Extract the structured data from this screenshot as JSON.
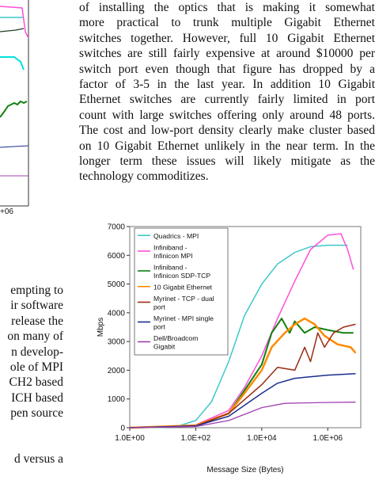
{
  "paragraph_right": [
    "of installing the optics that is making it somewhat",
    "more practical to trunk multiple Gigabit Ethernet",
    "switches together. However, full 10 Gigabit Ethernet",
    "switches are still fairly expensive at around $10000 per",
    "switch port even though that figure has dropped by a",
    "factor of 3-5 in the last year. In addition 10 Gigabit",
    "Ethernet switches are currently fairly limited in port",
    "count with large switches offering only around 48 ports.",
    "The cost and low-port density clearly make cluster based",
    "on 10 Gigabit Ethernet unlikely in the near term. In the",
    "longer term these issues will likely mitigate as the",
    "technology commoditizes."
  ],
  "left_fragment": {
    "tick_label": "+06",
    "lines": [
      "empting to",
      "ir software",
      "release the",
      "on many of",
      "n develop-",
      "ole of MPI",
      "CH2 based",
      "ICH based",
      "pen source",
      "",
      "",
      "d versus a"
    ]
  },
  "colors": {
    "quadrics": "#3cc8c8",
    "infiniband_mpi": "#ff4fd8",
    "infiniband_sdp": "#108010",
    "ten_gige": "#ff8a00",
    "myrinet_tcp": "#9a2a10",
    "myrinet_mpi": "#1a2d8c",
    "dell_broadcom": "#a040b0"
  },
  "chart_data": {
    "type": "line",
    "xscale": "log",
    "xlim": [
      1,
      10000000
    ],
    "ylim": [
      0,
      7000
    ],
    "ylabel": "Mbps",
    "xlabel": "Message Size (Bytes)",
    "xticks": [
      "1.0E+00",
      "1.0E+02",
      "1.0E+04",
      "1.0E+06"
    ],
    "yticks": [
      "0",
      "1000",
      "2000",
      "3000",
      "4000",
      "5000",
      "6000",
      "7000"
    ],
    "grid": false,
    "legend_position": "top-left",
    "series": [
      {
        "name": "Quadrics - MPI",
        "color_key": "quadrics",
        "points": [
          [
            1,
            0
          ],
          [
            10,
            10
          ],
          [
            30,
            60
          ],
          [
            100,
            250
          ],
          [
            300,
            900
          ],
          [
            1000,
            2300
          ],
          [
            3000,
            3900
          ],
          [
            10000,
            5000
          ],
          [
            30000,
            5700
          ],
          [
            100000,
            6100
          ],
          [
            300000,
            6300
          ],
          [
            1000000,
            6350
          ],
          [
            4000000,
            6350
          ]
        ]
      },
      {
        "name": "Infiniband - Infinicon MPI",
        "color_key": "infiniband_mpi",
        "points": [
          [
            1,
            0
          ],
          [
            100,
            100
          ],
          [
            1000,
            600
          ],
          [
            3000,
            1400
          ],
          [
            10000,
            2500
          ],
          [
            30000,
            3800
          ],
          [
            100000,
            5100
          ],
          [
            300000,
            6200
          ],
          [
            1000000,
            6700
          ],
          [
            2500000,
            6750
          ],
          [
            4000000,
            6200
          ],
          [
            6000000,
            5500
          ]
        ]
      },
      {
        "name": "Infiniband - Infinicon SDP-TCP",
        "color_key": "infiniband_sdp",
        "points": [
          [
            1,
            0
          ],
          [
            100,
            60
          ],
          [
            1000,
            500
          ],
          [
            3000,
            1300
          ],
          [
            10000,
            2200
          ],
          [
            20000,
            3300
          ],
          [
            40000,
            3800
          ],
          [
            70000,
            3300
          ],
          [
            100000,
            3700
          ],
          [
            200000,
            3300
          ],
          [
            400000,
            3500
          ],
          [
            1000000,
            3400
          ],
          [
            3000000,
            3300
          ],
          [
            6000000,
            3300
          ]
        ]
      },
      {
        "name": "10 Gigabit Ethernet",
        "color_key": "ten_gige",
        "points": [
          [
            1,
            0
          ],
          [
            100,
            80
          ],
          [
            1000,
            500
          ],
          [
            3000,
            1200
          ],
          [
            10000,
            2000
          ],
          [
            20000,
            2800
          ],
          [
            50000,
            3300
          ],
          [
            100000,
            3600
          ],
          [
            200000,
            3800
          ],
          [
            400000,
            3600
          ],
          [
            800000,
            3200
          ],
          [
            2000000,
            2900
          ],
          [
            5000000,
            2800
          ],
          [
            7000000,
            2600
          ]
        ]
      },
      {
        "name": "Myrinet - TCP - dual port",
        "color_key": "myrinet_tcp",
        "points": [
          [
            1,
            0
          ],
          [
            100,
            60
          ],
          [
            1000,
            500
          ],
          [
            10000,
            1500
          ],
          [
            30000,
            2100
          ],
          [
            100000,
            2000
          ],
          [
            200000,
            2800
          ],
          [
            300000,
            2300
          ],
          [
            500000,
            3300
          ],
          [
            800000,
            2800
          ],
          [
            1500000,
            3300
          ],
          [
            3000000,
            3500
          ],
          [
            7000000,
            3600
          ]
        ]
      },
      {
        "name": "Myrinet - MPI single port",
        "color_key": "myrinet_mpi",
        "points": [
          [
            1,
            0
          ],
          [
            100,
            60
          ],
          [
            1000,
            400
          ],
          [
            10000,
            1200
          ],
          [
            30000,
            1550
          ],
          [
            100000,
            1720
          ],
          [
            1000000,
            1830
          ],
          [
            7000000,
            1880
          ]
        ]
      },
      {
        "name": "Dell/Broadcom Gigabit",
        "color_key": "dell_broadcom",
        "points": [
          [
            1,
            0
          ],
          [
            100,
            40
          ],
          [
            1000,
            250
          ],
          [
            10000,
            700
          ],
          [
            50000,
            850
          ],
          [
            1000000,
            880
          ],
          [
            7000000,
            890
          ]
        ]
      }
    ]
  }
}
